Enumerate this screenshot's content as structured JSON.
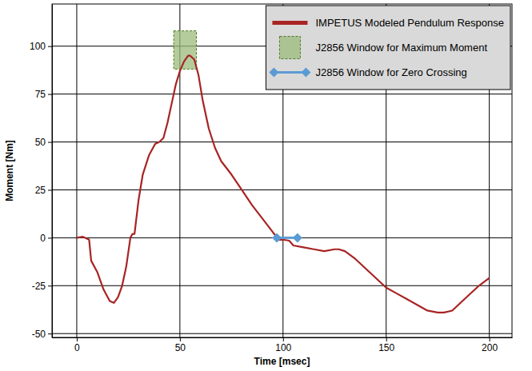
{
  "chart_data": {
    "type": "line",
    "xlabel": "Time [msec]",
    "ylabel": "Moment [Nm]",
    "xlim": [
      -12,
      211
    ],
    "ylim": [
      -52,
      122
    ],
    "xticks": [
      0,
      50,
      100,
      150,
      200
    ],
    "yticks": [
      -50,
      -25,
      0,
      25,
      50,
      75,
      100
    ],
    "grid": true,
    "legend": "upper right",
    "series": [
      {
        "name": "J2856 Window for Maximum Moment",
        "type": "rect",
        "color": "#9bbb7a",
        "x": [
          47,
          58
        ],
        "values": [
          88,
          108
        ]
      },
      {
        "name": "IMPETUS Modeled Pendulum Response",
        "type": "line",
        "color": "#a82424",
        "x": [
          0,
          3,
          5,
          6,
          7,
          10,
          13,
          16,
          18,
          20,
          22,
          24,
          26,
          27,
          28,
          30,
          32,
          35,
          38,
          40,
          42,
          44,
          46,
          48,
          50,
          52,
          54,
          55,
          57,
          59,
          61,
          64,
          67,
          70,
          75,
          80,
          85,
          90,
          95,
          98,
          100,
          103,
          105,
          110,
          115,
          120,
          125,
          127,
          130,
          135,
          140,
          145,
          150,
          155,
          160,
          165,
          170,
          175,
          178,
          182,
          188,
          195,
          200
        ],
        "values": [
          0,
          0.5,
          -0.5,
          -1,
          -12,
          -18,
          -27,
          -33,
          -34,
          -31,
          -25,
          -15,
          0,
          2,
          2,
          20,
          33,
          43,
          49,
          50,
          52,
          60,
          70,
          80,
          87,
          92,
          95,
          95,
          93,
          85,
          72,
          57,
          47,
          40,
          33,
          25,
          17,
          10,
          3,
          -1,
          -1,
          -1.5,
          -4,
          -5,
          -6,
          -7,
          -6,
          -6,
          -7,
          -11,
          -16,
          -21,
          -26,
          -29,
          -32,
          -35,
          -38,
          -39,
          -39,
          -38,
          -32,
          -25,
          -21
        ]
      },
      {
        "name": "J2856 Window for Zero Crossing",
        "type": "line",
        "color": "#5b9bd5",
        "marker": "diamond",
        "x": [
          97,
          107
        ],
        "values": [
          0,
          0
        ]
      }
    ]
  }
}
